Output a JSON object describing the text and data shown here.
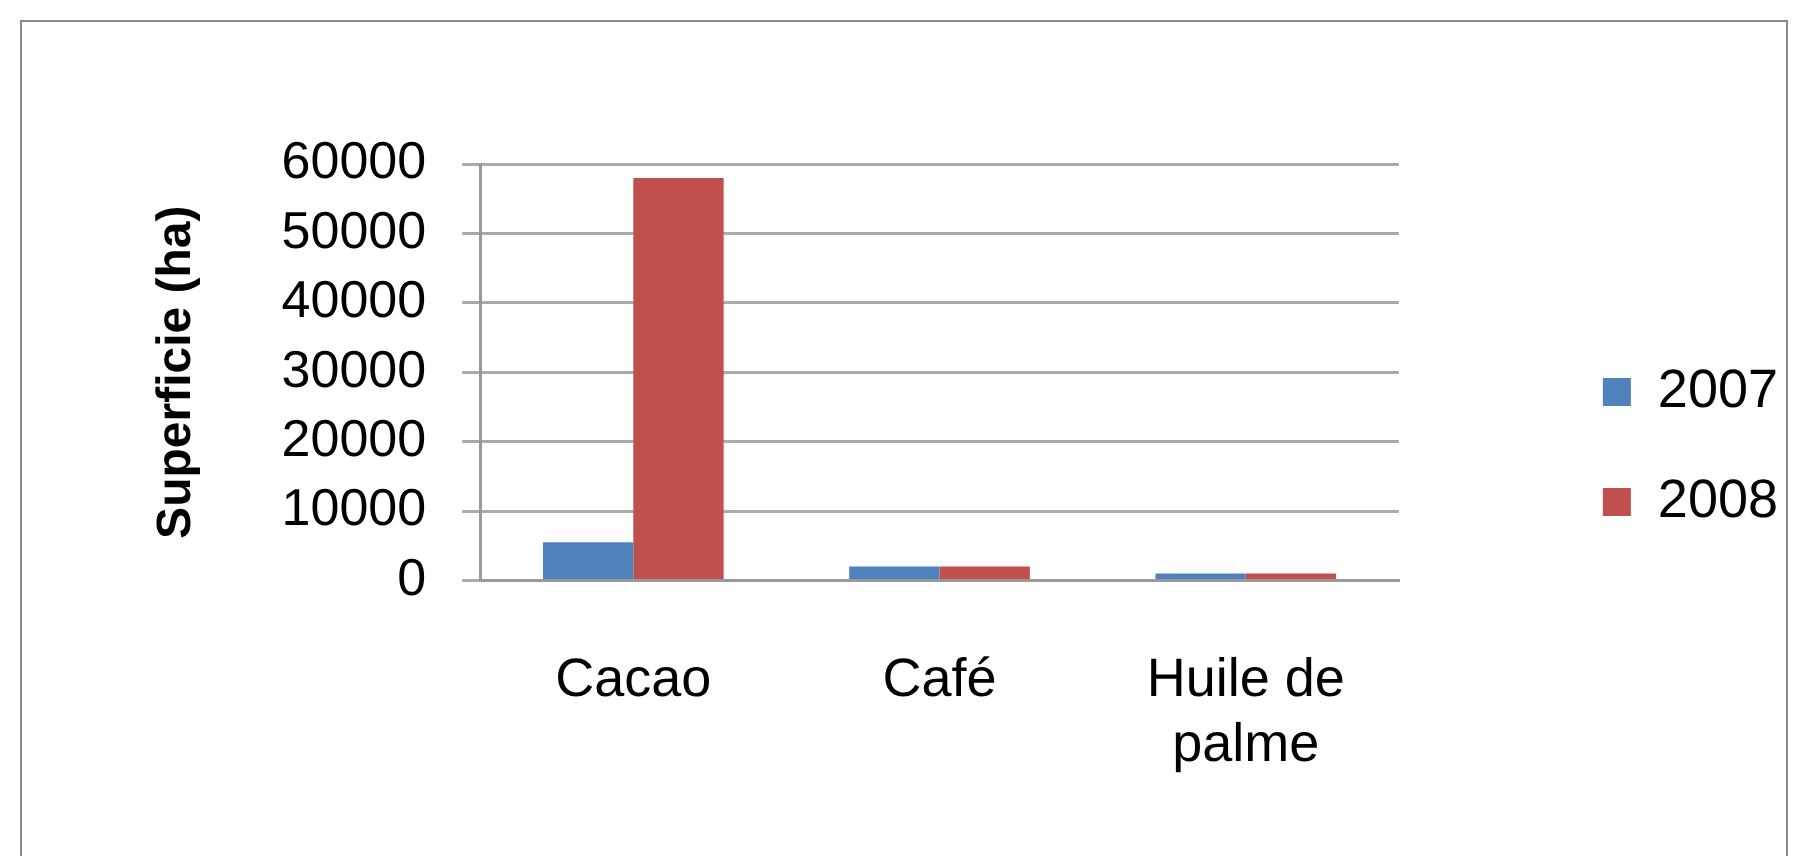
{
  "chart_data": {
    "type": "bar",
    "ylabel": "Superficie (ha)",
    "categories": [
      "Cacao",
      "Café",
      "Huile de palme"
    ],
    "series": [
      {
        "name": "2007",
        "color": "#4f81bd",
        "values": [
          5500,
          2000,
          1000
        ]
      },
      {
        "name": "2008",
        "color": "#c0504d",
        "values": [
          58000,
          2000,
          1000
        ]
      }
    ],
    "ylim": [
      0,
      60000
    ],
    "yticks": [
      0,
      10000,
      20000,
      30000,
      40000,
      50000,
      60000
    ],
    "grid": "y",
    "legend": "right"
  }
}
